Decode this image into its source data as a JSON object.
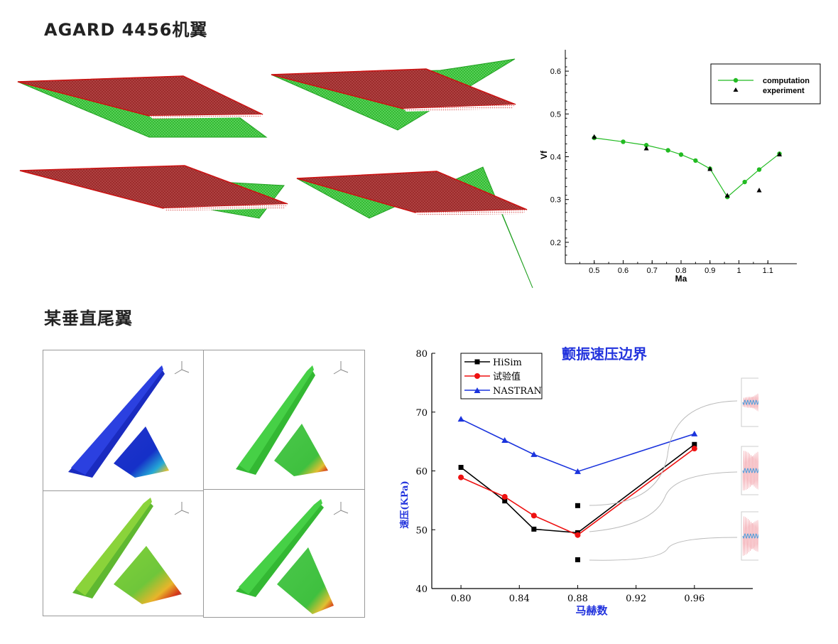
{
  "sections": {
    "agard_title": "AGARD 4456机翼",
    "tail_title": "某垂直尾翼"
  },
  "colors": {
    "wing_red": "#a83232",
    "mode_green": "#22c022",
    "computation": "#22bb22",
    "hisim": "#000000",
    "test": "#ee1111",
    "nastran": "#1a33dd",
    "tail_blue": "#1c2fd0",
    "tail_green": "#3bc83b"
  },
  "chart_data": [
    {
      "type": "line",
      "title": "",
      "xlabel": "Ma",
      "ylabel": "Vf",
      "xlim": [
        0.4,
        1.2
      ],
      "ylim": [
        0.15,
        0.65
      ],
      "x_ticks": [
        0.5,
        0.6,
        0.7,
        0.8,
        0.9,
        1,
        1.1
      ],
      "x_tick_labels": [
        "0.5",
        "0.6",
        "0.7",
        "0.8",
        "0.9",
        "1",
        "1.1"
      ],
      "y_ticks": [
        0.2,
        0.3,
        0.4,
        0.5,
        0.6
      ],
      "y_tick_labels": [
        "0.2",
        "0.3",
        "0.4",
        "0.5",
        "0.6"
      ],
      "legend": "top-right",
      "grid": false,
      "series": [
        {
          "name": "computation",
          "style": "line-circle",
          "x": [
            0.5,
            0.6,
            0.68,
            0.755,
            0.8,
            0.85,
            0.9,
            0.96,
            1.02,
            1.07,
            1.14
          ],
          "y": [
            0.444,
            0.435,
            0.427,
            0.415,
            0.405,
            0.391,
            0.372,
            0.306,
            0.341,
            0.37,
            0.407
          ]
        },
        {
          "name": "experiment",
          "style": "triangle",
          "x": [
            0.5,
            0.68,
            0.9,
            0.96,
            1.07,
            1.14
          ],
          "y": [
            0.446,
            0.419,
            0.371,
            0.309,
            0.321,
            0.405
          ]
        }
      ]
    },
    {
      "type": "line",
      "title": "颤振速压边界",
      "xlabel": "马赫数",
      "ylabel": "速压(KPa)",
      "xlim": [
        0.78,
        1.0
      ],
      "ylim": [
        40,
        80
      ],
      "x_ticks": [
        0.8,
        0.84,
        0.88,
        0.92,
        0.96
      ],
      "x_tick_labels": [
        "0.80",
        "0.84",
        "0.88",
        "0.92",
        "0.96"
      ],
      "y_ticks": [
        40,
        50,
        60,
        70,
        80
      ],
      "y_tick_labels": [
        "40",
        "50",
        "60",
        "70",
        "80"
      ],
      "legend": "top-left",
      "grid": false,
      "series": [
        {
          "name": "HiSim",
          "style": "line-square",
          "x": [
            0.8,
            0.83,
            0.85,
            0.88,
            0.96
          ],
          "y": [
            60.6,
            54.9,
            50.1,
            49.5,
            64.5
          ]
        },
        {
          "name": "试验值",
          "style": "line-circle",
          "x": [
            0.8,
            0.83,
            0.85,
            0.88,
            0.96
          ],
          "y": [
            58.9,
            55.6,
            52.4,
            49.1,
            63.8
          ]
        },
        {
          "name": "NASTRAN",
          "style": "line-triangle",
          "x": [
            0.8,
            0.83,
            0.85,
            0.88,
            0.96
          ],
          "y": [
            68.8,
            65.2,
            62.8,
            59.9,
            66.3
          ]
        },
        {
          "name": "",
          "style": "square",
          "x": [
            0.88,
            0.88
          ],
          "y": [
            54.1,
            44.9
          ]
        }
      ]
    }
  ]
}
